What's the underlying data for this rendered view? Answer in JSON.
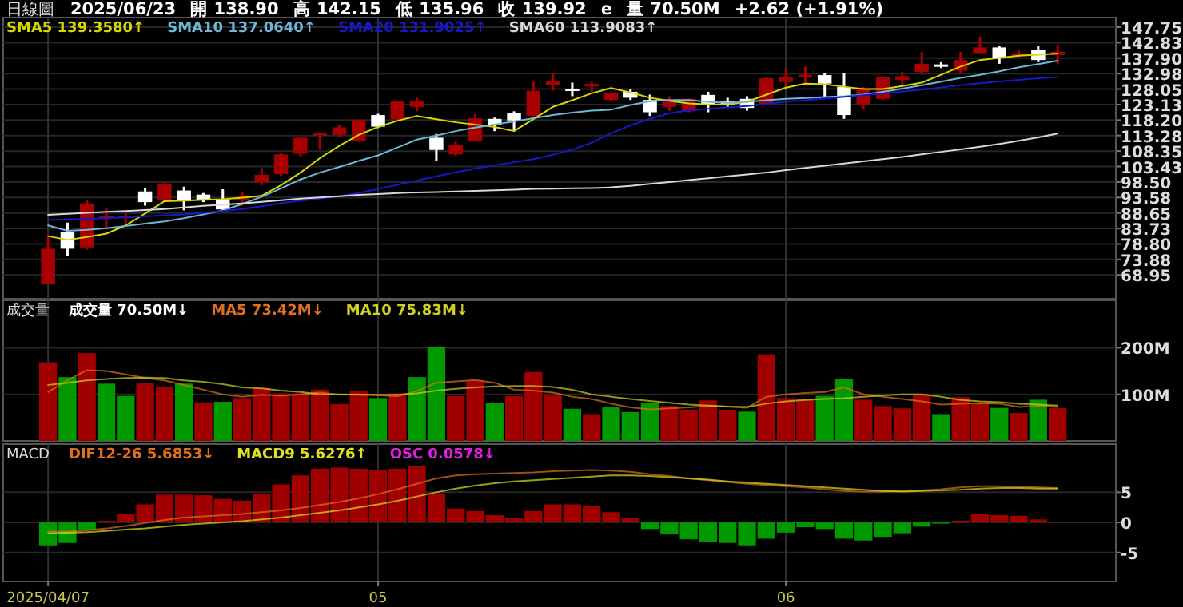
{
  "chart_data": [
    {
      "type": "candlestick",
      "title": "日線圖",
      "annotations": [
        "2025/06/23",
        "開 138.90",
        "高 142.15",
        "低 135.96",
        "收 139.92",
        "e",
        "量 70.50M",
        "+2.62 (+1.91%)"
      ],
      "categories": [
        "2025/04/07",
        null,
        null,
        null,
        null,
        null,
        null,
        null,
        null,
        null,
        null,
        null,
        null,
        null,
        null,
        null,
        null,
        "05",
        null,
        null,
        null,
        null,
        null,
        null,
        null,
        null,
        null,
        null,
        null,
        null,
        null,
        null,
        null,
        null,
        null,
        null,
        null,
        null,
        "06",
        null,
        null,
        null,
        null,
        null,
        null,
        null,
        null,
        null,
        null,
        null,
        null,
        null,
        null
      ],
      "ohlc": [
        [
          66.2,
          81.3,
          65.9,
          77.3
        ],
        [
          82.6,
          85.6,
          74.9,
          77.3
        ],
        [
          77.7,
          92.75,
          77.0,
          91.7
        ],
        [
          87.3,
          90.3,
          83.5,
          87.8
        ],
        [
          87.2,
          89.5,
          85.0,
          87.8
        ],
        [
          95.5,
          96.7,
          91.0,
          92.1
        ],
        [
          92.75,
          98.6,
          92.4,
          97.9
        ],
        [
          95.8,
          97.0,
          89.5,
          92.4
        ],
        [
          94.5,
          95.0,
          92.1,
          92.75
        ],
        [
          92.75,
          96.2,
          89.0,
          89.8
        ],
        [
          92.75,
          95.5,
          91.0,
          93.8
        ],
        [
          98.4,
          103.0,
          97.5,
          100.8
        ],
        [
          101.0,
          107.8,
          100.5,
          107.3
        ],
        [
          107.5,
          112.6,
          106.5,
          112.6
        ],
        [
          113.3,
          114.2,
          108.7,
          114.2
        ],
        [
          113.5,
          116.7,
          113.0,
          115.9
        ],
        [
          111.6,
          118.3,
          111.3,
          118.3
        ],
        [
          119.8,
          120.2,
          115.7,
          116.1
        ],
        [
          118.5,
          124.1,
          118.1,
          124.1
        ],
        [
          122.4,
          125.3,
          121.0,
          124.1
        ],
        [
          112.6,
          113.8,
          105.3,
          108.7
        ],
        [
          107.3,
          111.6,
          106.8,
          110.4
        ],
        [
          111.7,
          120.2,
          111.3,
          118.8
        ],
        [
          118.6,
          119.0,
          114.7,
          116.7
        ],
        [
          120.4,
          121.0,
          114.7,
          118.1
        ],
        [
          119.5,
          130.4,
          119.5,
          127.5
        ],
        [
          129.25,
          133.2,
          127.5,
          130.6
        ],
        [
          128.2,
          130.1,
          125.8,
          127.8
        ],
        [
          128.9,
          130.4,
          127.0,
          129.7
        ],
        [
          124.6,
          127.0,
          124.1,
          126.7
        ],
        [
          127.2,
          128.05,
          124.6,
          125.3
        ],
        [
          124.6,
          126.3,
          119.5,
          120.7
        ],
        [
          122.4,
          125.8,
          121.2,
          124.1
        ],
        [
          121.0,
          124.95,
          120.7,
          124.95
        ],
        [
          126.2,
          127.2,
          120.7,
          123.2
        ],
        [
          124.1,
          125.3,
          122.4,
          123.2
        ],
        [
          124.95,
          125.8,
          121.2,
          122.05
        ],
        [
          123.2,
          131.8,
          122.9,
          131.5
        ],
        [
          130.3,
          134.4,
          128.7,
          131.8
        ],
        [
          132.2,
          135.2,
          129.8,
          132.6
        ],
        [
          132.5,
          133.2,
          125.5,
          129.8
        ],
        [
          128.7,
          133.2,
          118.6,
          119.8
        ],
        [
          123.2,
          128.7,
          121.5,
          128.05
        ],
        [
          124.95,
          131.8,
          124.6,
          131.8
        ],
        [
          130.95,
          133.5,
          129.25,
          132.2
        ],
        [
          133.5,
          139.9,
          132.7,
          136.1
        ],
        [
          135.9,
          136.6,
          134.75,
          135.4
        ],
        [
          133.9,
          139.9,
          133.2,
          137.3
        ],
        [
          139.5,
          144.7,
          139.5,
          141.3
        ],
        [
          141.3,
          141.8,
          136.1,
          137.8
        ],
        [
          138.7,
          140.4,
          137.8,
          139.5
        ],
        [
          140.4,
          141.8,
          136.6,
          137.3
        ],
        [
          138.9,
          142.15,
          135.96,
          139.92
        ]
      ],
      "colors": [
        "#a80000",
        "#ffffff",
        "#a80000",
        "#a80000",
        "#a80000",
        "#ffffff",
        "#a80000",
        "#ffffff",
        "#ffffff",
        "#ffffff",
        "#a80000",
        "#a80000",
        "#a80000",
        "#a80000",
        "#a80000",
        "#a80000",
        "#a80000",
        "#ffffff",
        "#a80000",
        "#a80000",
        "#ffffff",
        "#a80000",
        "#a80000",
        "#ffffff",
        "#ffffff",
        "#a80000",
        "#a80000",
        "#ffffff",
        "#a80000",
        "#a80000",
        "#ffffff",
        "#ffffff",
        "#a80000",
        "#a80000",
        "#ffffff",
        "#ffffff",
        "#ffffff",
        "#a80000",
        "#a80000",
        "#a80000",
        "#ffffff",
        "#ffffff",
        "#a80000",
        "#a80000",
        "#a80000",
        "#a80000",
        "#ffffff",
        "#a80000",
        "#a80000",
        "#ffffff",
        "#a80000",
        "#ffffff",
        "#a80000"
      ],
      "series": [
        {
          "name": "SMA5 139.3580↑",
          "type": "line",
          "color": "#d8d800",
          "values": [
            81.3,
            80.1,
            81.0,
            82.1,
            84.7,
            88.5,
            92.4,
            92.6,
            92.8,
            93.0,
            93.5,
            94.1,
            97.5,
            101.5,
            106.1,
            110.0,
            113.5,
            116.0,
            118.0,
            119.5,
            118.5,
            117.5,
            116.8,
            116.0,
            114.7,
            118.5,
            122.4,
            124.5,
            126.7,
            128.4,
            127.0,
            125.3,
            124.3,
            123.5,
            123.2,
            123.2,
            124.0,
            126.3,
            128.5,
            129.8,
            129.6,
            128.8,
            128.05,
            128.05,
            129.0,
            130.1,
            132.6,
            135.2,
            137.3,
            138.0,
            138.7,
            139.0,
            139.4
          ]
        },
        {
          "name": "SMA10 137.0640↑",
          "type": "line",
          "color": "#6fb7d6",
          "values": [
            84.7,
            83.0,
            83.3,
            83.8,
            84.5,
            85.3,
            86.0,
            87.0,
            88.2,
            89.5,
            91.5,
            93.8,
            96.5,
            99.3,
            101.5,
            103.3,
            105.2,
            107.0,
            109.5,
            112.0,
            113.3,
            114.7,
            115.8,
            116.8,
            117.8,
            118.8,
            119.8,
            120.6,
            121.2,
            121.5,
            123.0,
            124.2,
            124.6,
            124.6,
            124.0,
            123.7,
            124.0,
            124.5,
            124.95,
            125.2,
            125.5,
            125.8,
            126.3,
            127.2,
            128.2,
            129.3,
            130.4,
            131.6,
            132.6,
            133.7,
            135.0,
            136.0,
            137.06
          ]
        },
        {
          "name": "SMA20 131.9025↑",
          "type": "line",
          "color": "#1818c8",
          "values": [
            86.4,
            86.6,
            86.8,
            87.0,
            87.3,
            87.6,
            87.9,
            88.2,
            88.7,
            89.3,
            89.9,
            90.8,
            91.8,
            92.6,
            93.3,
            94.0,
            95.0,
            96.3,
            97.6,
            99.0,
            100.3,
            101.6,
            102.8,
            103.8,
            104.8,
            105.8,
            107.2,
            108.8,
            111.0,
            114.0,
            116.5,
            118.6,
            120.4,
            121.3,
            121.8,
            122.2,
            122.7,
            123.3,
            124.0,
            124.5,
            125.0,
            125.6,
            126.1,
            126.7,
            127.3,
            127.9,
            128.6,
            129.3,
            129.9,
            130.5,
            131.0,
            131.5,
            131.9
          ]
        },
        {
          "name": "SMA60 113.9083↑",
          "type": "line",
          "color": "#d8d8d8",
          "values": [
            88.1,
            88.4,
            88.7,
            89.0,
            89.3,
            89.6,
            89.9,
            90.4,
            90.9,
            91.3,
            91.7,
            92.2,
            92.7,
            93.2,
            93.6,
            94.0,
            94.4,
            94.7,
            95.0,
            95.2,
            95.3,
            95.5,
            95.7,
            95.9,
            96.1,
            96.3,
            96.4,
            96.5,
            96.6,
            96.8,
            97.3,
            97.9,
            98.5,
            99.1,
            99.7,
            100.3,
            100.9,
            101.5,
            102.3,
            103.0,
            103.7,
            104.4,
            105.1,
            105.8,
            106.5,
            107.3,
            108.1,
            108.9,
            109.7,
            110.6,
            111.6,
            112.7,
            113.9
          ]
        }
      ],
      "ylim": [
        61.4,
        150.8
      ],
      "yticks": [
        147.75,
        142.83,
        {
          "value": 137.9,
          "label": "137.90"
        },
        132.98,
        128.05,
        123.13,
        {
          "value": 118.2,
          "label": "118.20"
        },
        113.28,
        108.35,
        103.43,
        {
          "value": 98.5,
          "label": "98.50"
        },
        93.58,
        88.65,
        83.73,
        {
          "value": 78.8,
          "label": "78.80"
        },
        73.88,
        68.95
      ],
      "grid": true,
      "tick_labels": "y",
      "legend": "top left"
    },
    {
      "type": "bar",
      "title": "成交量",
      "categories": [
        "2025/04/07",
        null,
        null,
        null,
        null,
        null,
        null,
        null,
        null,
        null,
        null,
        null,
        null,
        null,
        null,
        null,
        null,
        "05",
        null,
        null,
        null,
        null,
        null,
        null,
        null,
        null,
        null,
        null,
        null,
        null,
        null,
        null,
        null,
        null,
        null,
        null,
        null,
        null,
        "06",
        null,
        null,
        null,
        null,
        null,
        null,
        null,
        null,
        null,
        null,
        null,
        null,
        null,
        null
      ],
      "series": [
        {
          "name": "成交量 70.50M↓",
          "type": "bar",
          "color": "#ffffff",
          "colors": [
            "#a00000",
            "#009a00",
            "#a00000",
            "#009a00",
            "#009a00",
            "#a00000",
            "#a00000",
            "#009a00",
            "#a00000",
            "#009a00",
            "#a00000",
            "#a00000",
            "#a00000",
            "#a00000",
            "#a00000",
            "#a00000",
            "#a00000",
            "#009a00",
            "#a00000",
            "#009a00",
            "#009a00",
            "#a00000",
            "#a00000",
            "#009a00",
            "#a00000",
            "#a00000",
            "#a00000",
            "#009a00",
            "#a00000",
            "#009a00",
            "#009a00",
            "#009a00",
            "#a00000",
            "#a00000",
            "#a00000",
            "#a00000",
            "#009a00",
            "#a00000",
            "#a00000",
            "#a00000",
            "#009a00",
            "#009a00",
            "#a00000",
            "#a00000",
            "#a00000",
            "#a00000",
            "#009a00",
            "#a00000",
            "#a00000",
            "#009a00",
            "#a00000",
            "#009a00",
            "#a00000"
          ],
          "values": [
            169,
            137,
            188.5,
            123,
            96.6,
            125,
            117,
            123,
            82.8,
            84,
            92,
            114,
            102,
            102,
            110,
            79,
            108,
            92,
            102,
            137,
            201,
            96.6,
            129,
            81.6,
            96.6,
            148,
            97.7,
            69,
            57.5,
            72,
            62,
            81.6,
            75,
            67,
            87,
            67,
            63,
            186,
            92,
            91,
            96.6,
            133,
            88.5,
            75,
            70,
            100,
            57.5,
            94,
            81.6,
            71,
            60,
            88.5,
            70.5
          ]
        },
        {
          "name": "MA5 73.42M↓",
          "type": "line",
          "color": "#e07020",
          "values": [
            105,
            130,
            152,
            150,
            143,
            135,
            130,
            120,
            110,
            100,
            95,
            99,
            97,
            100,
            104,
            99,
            100,
            98,
            96,
            107,
            125,
            128,
            131,
            125,
            110,
            108,
            104,
            95,
            90,
            80,
            72,
            68,
            70,
            72,
            75,
            74,
            71,
            95,
            100,
            103,
            105,
            115,
            100,
            95,
            90,
            85,
            78,
            80,
            81,
            80,
            73,
            75,
            73
          ]
        },
        {
          "name": "MA10 75.83M↓",
          "type": "line",
          "color": "#d0d020",
          "values": [
            120,
            125,
            130,
            133,
            135,
            136,
            135,
            130,
            127,
            122,
            115,
            113,
            108,
            105,
            100,
            100,
            99,
            99,
            99,
            102,
            108,
            112,
            115,
            117,
            118,
            118,
            116,
            110,
            100,
            95,
            90,
            86,
            82,
            78,
            76,
            74,
            73,
            80,
            85,
            88,
            90,
            92,
            95,
            98,
            100,
            100,
            95,
            88,
            85,
            83,
            80,
            78,
            76
          ]
        }
      ],
      "ylim": [
        0,
        302
      ],
      "yticks": [
        {
          "value": 100,
          "label": "100M"
        },
        {
          "value": 200,
          "label": "200M"
        }
      ],
      "grid": true,
      "tick_labels": "y",
      "legend": "top left"
    },
    {
      "type": "bar",
      "title": "MACD",
      "categories": [
        "2025/04/07",
        null,
        null,
        null,
        null,
        null,
        null,
        null,
        null,
        null,
        null,
        null,
        null,
        null,
        null,
        null,
        null,
        "05",
        null,
        null,
        null,
        null,
        null,
        null,
        null,
        null,
        null,
        null,
        null,
        null,
        null,
        null,
        null,
        null,
        null,
        null,
        null,
        null,
        "06",
        null,
        null,
        null,
        null,
        null,
        null,
        null,
        null,
        null,
        null,
        null,
        null,
        null,
        null
      ],
      "series": [
        {
          "name": "DIF12-26 5.6853↓",
          "type": "line",
          "color": "#e07020",
          "values": [
            -1.5,
            -1.5,
            -1.3,
            -1.0,
            -0.6,
            -0.1,
            0.4,
            0.8,
            1.0,
            1.2,
            1.4,
            1.7,
            2.0,
            2.4,
            2.9,
            3.4,
            4.0,
            4.7,
            5.5,
            6.4,
            7.3,
            7.8,
            8.0,
            8.1,
            8.2,
            8.3,
            8.5,
            8.6,
            8.7,
            8.6,
            8.4,
            8.0,
            7.7,
            7.3,
            7.0,
            6.7,
            6.4,
            6.2,
            6.0,
            5.8,
            5.5,
            5.2,
            5.1,
            5.1,
            5.2,
            5.3,
            5.5,
            5.8,
            6.0,
            6.0,
            5.9,
            5.8,
            5.7
          ]
        },
        {
          "name": "MACD9 5.6276↑",
          "type": "line",
          "color": "#e0e020",
          "values": [
            -1.8,
            -1.7,
            -1.6,
            -1.4,
            -1.2,
            -1.0,
            -0.7,
            -0.4,
            -0.2,
            0.0,
            0.2,
            0.5,
            0.8,
            1.2,
            1.6,
            2.0,
            2.5,
            3.0,
            3.6,
            4.3,
            5.0,
            5.6,
            6.1,
            6.5,
            6.8,
            7.0,
            7.2,
            7.4,
            7.6,
            7.8,
            7.8,
            7.7,
            7.5,
            7.3,
            7.1,
            6.8,
            6.6,
            6.4,
            6.2,
            6.0,
            5.8,
            5.6,
            5.4,
            5.2,
            5.1,
            5.2,
            5.3,
            5.4,
            5.6,
            5.7,
            5.7,
            5.6,
            5.6
          ]
        },
        {
          "name": "OSC 0.0578↓",
          "type": "bar",
          "color": "#e020e0",
          "colors": [
            "#009a00",
            "#009a00",
            "#009a00",
            "#a00000",
            "#a00000",
            "#a00000",
            "#a00000",
            "#a00000",
            "#a00000",
            "#a00000",
            "#a00000",
            "#a00000",
            "#a00000",
            "#a00000",
            "#a00000",
            "#a00000",
            "#a00000",
            "#a00000",
            "#a00000",
            "#a00000",
            "#a00000",
            "#a00000",
            "#a00000",
            "#a00000",
            "#a00000",
            "#a00000",
            "#a00000",
            "#a00000",
            "#a00000",
            "#a00000",
            "#a00000",
            "#009a00",
            "#009a00",
            "#009a00",
            "#009a00",
            "#009a00",
            "#009a00",
            "#009a00",
            "#009a00",
            "#009a00",
            "#009a00",
            "#009a00",
            "#009a00",
            "#009a00",
            "#009a00",
            "#009a00",
            "#009a00",
            "#a00000",
            "#a00000",
            "#a00000",
            "#a00000",
            "#a00000",
            "#a00000"
          ],
          "values": [
            -3.8,
            -3.4,
            -1.3,
            0.3,
            1.4,
            3.0,
            4.6,
            4.6,
            4.5,
            3.9,
            3.6,
            4.8,
            6.3,
            7.8,
            8.9,
            9.1,
            8.9,
            8.7,
            8.9,
            9.3,
            4.8,
            2.3,
            1.9,
            1.2,
            0.8,
            1.9,
            3.0,
            3.0,
            2.7,
            1.7,
            0.7,
            -1.1,
            -2.0,
            -2.8,
            -3.2,
            -3.4,
            -3.8,
            -2.7,
            -1.7,
            -0.8,
            -1.1,
            -2.7,
            -3.0,
            -2.4,
            -1.8,
            -0.7,
            -0.2,
            0.3,
            1.4,
            1.2,
            1.1,
            0.5,
            0.1
          ]
        }
      ],
      "ylim": [
        -9.8,
        13
      ],
      "yticks": [
        {
          "value": -5,
          "label": "-5"
        },
        0,
        5
      ],
      "grid": true,
      "legend": "top left"
    }
  ]
}
